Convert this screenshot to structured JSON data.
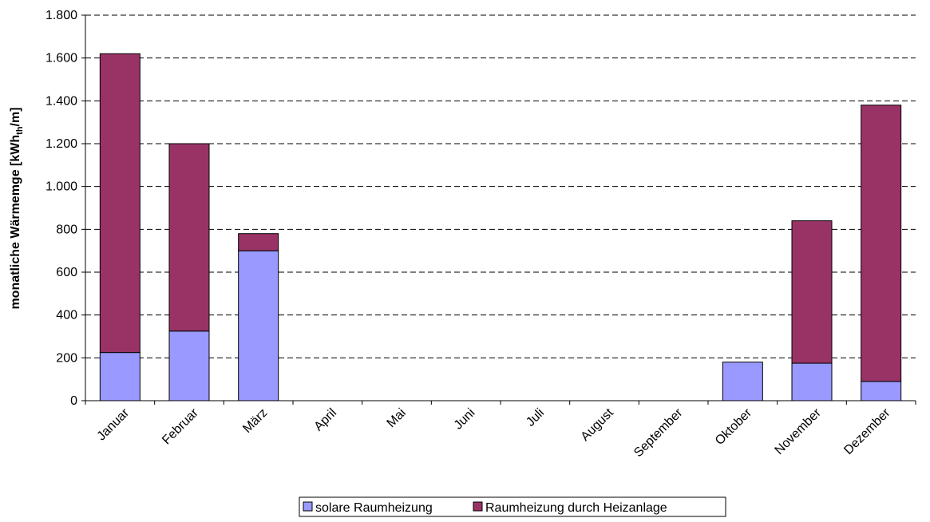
{
  "chart_data": {
    "type": "bar",
    "stacked": true,
    "categories": [
      "Januar",
      "Februar",
      "März",
      "April",
      "Mai",
      "Juni",
      "Juli",
      "August",
      "September",
      "Oktober",
      "November",
      "Dezember"
    ],
    "series": [
      {
        "name": "solare Raumheizung",
        "color": "#9999ff",
        "values": [
          225,
          325,
          700,
          0,
          0,
          0,
          0,
          0,
          0,
          180,
          175,
          90
        ]
      },
      {
        "name": "Raumheizung durch Heizanlage",
        "color": "#993366",
        "values": [
          1395,
          875,
          80,
          0,
          0,
          0,
          0,
          0,
          0,
          0,
          665,
          1290
        ]
      }
    ],
    "ylabel": {
      "main": "monatliche Wärmemge [kWh",
      "sub": "th",
      "tail": "/m]"
    },
    "ylim": [
      0,
      1800
    ],
    "yticks": [
      0,
      200,
      400,
      600,
      800,
      1000,
      1200,
      1400,
      1600,
      1800
    ],
    "ytick_labels": [
      "0",
      "200",
      "400",
      "600",
      "800",
      "1.000",
      "1.200",
      "1.400",
      "1.600",
      "1.800"
    ],
    "grid": true,
    "legend_position": "bottom"
  }
}
